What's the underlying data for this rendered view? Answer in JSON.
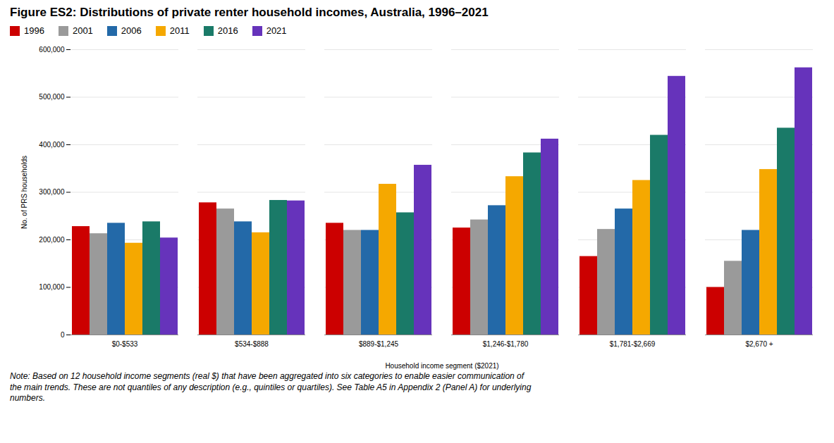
{
  "chart_data": {
    "type": "bar",
    "title": "Figure ES2: Distributions of private renter household incomes, Australia, 1996–2021",
    "xlabel": "Household income segment ($2021)",
    "ylabel": "No. of PRS households",
    "categories": [
      "$0-$533",
      "$534-$888",
      "$889-$1,245",
      "$1,246-$1,780",
      "$1,781-$2,669",
      "$2,670 +"
    ],
    "series": [
      {
        "name": "1996",
        "color": "#cc0000",
        "values": [
          228000,
          278000,
          235000,
          225000,
          165000,
          100000
        ]
      },
      {
        "name": "2001",
        "color": "#9a9a9a",
        "values": [
          213000,
          265000,
          220000,
          242000,
          222000,
          155000
        ]
      },
      {
        "name": "2006",
        "color": "#2369a8",
        "values": [
          235000,
          238000,
          220000,
          272000,
          265000,
          220000
        ]
      },
      {
        "name": "2011",
        "color": "#f5a800",
        "values": [
          193000,
          215000,
          317000,
          333000,
          325000,
          348000
        ]
      },
      {
        "name": "2016",
        "color": "#1a7a68",
        "values": [
          238000,
          283000,
          257000,
          383000,
          420000,
          435000
        ]
      },
      {
        "name": "2021",
        "color": "#6633bb",
        "values": [
          204000,
          282000,
          357000,
          412000,
          544000,
          562000
        ]
      }
    ],
    "ylim": [
      0,
      600000
    ],
    "yticks": [
      0,
      {
        "value": 100000,
        "label": "100,000"
      },
      {
        "value": 200000,
        "label": "200,000"
      },
      {
        "value": 300000,
        "label": "300,000"
      },
      {
        "value": 400000,
        "label": "400,000"
      },
      {
        "value": 500000,
        "label": "500,000"
      },
      {
        "value": 600000,
        "label": "600,000"
      }
    ],
    "grid": true,
    "legend": "upper left",
    "note": "Note: Based on 12 household income segments (real $) that have been aggregated into six categories to enable easier communication of\nthe main trends. These are not quantiles of any description (e.g., quintiles or quartiles). See Table A5 in Appendix 2 (Panel A) for underlying\nnumbers."
  }
}
